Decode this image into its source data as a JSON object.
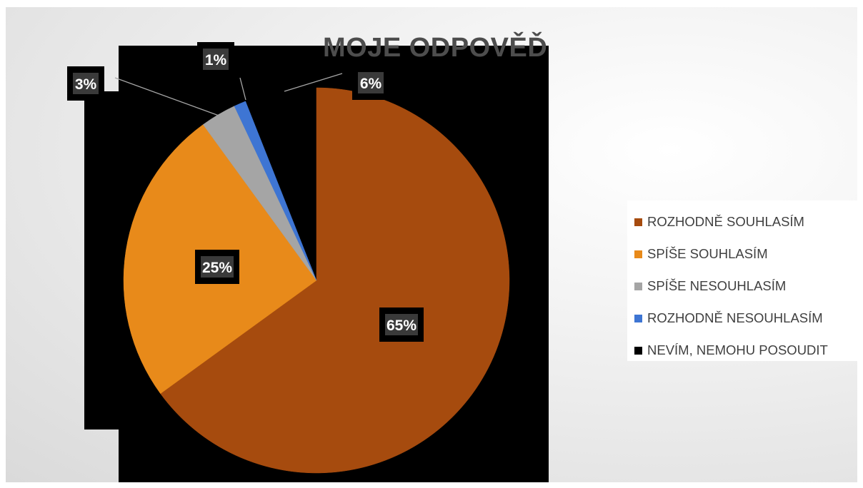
{
  "chart_data": {
    "type": "pie",
    "title": "MOJE ODPOVĚĎ",
    "categories": [
      "ROZHODNĚ SOUHLASÍM",
      "SPÍŠE SOUHLASÍM",
      "SPÍŠE NESOUHLASÍM",
      "ROZHODNĚ NESOUHLASÍM",
      "NEVÍM, NEMOHU POSOUDIT"
    ],
    "values": [
      65,
      25,
      3,
      1,
      6
    ],
    "labels": [
      "65%",
      "25%",
      "3%",
      "1%",
      "6%"
    ],
    "colors": [
      "#a64b0e",
      "#e88a1a",
      "#a5a5a5",
      "#3e75d3",
      "#000000"
    ],
    "legend_position": "right"
  }
}
